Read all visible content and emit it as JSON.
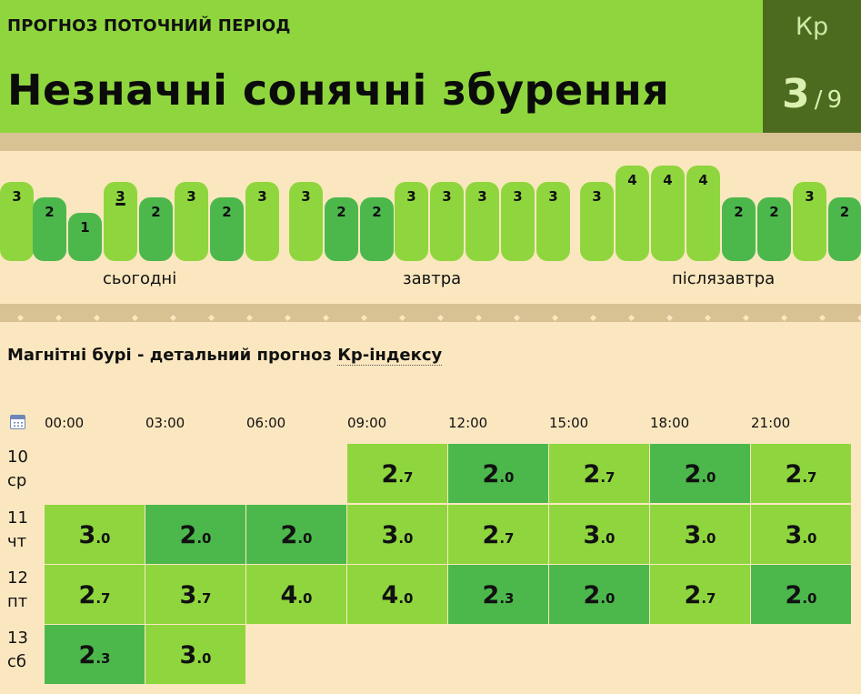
{
  "header": {
    "period_label": "ПРОГНОЗ ПОТОЧНИЙ ПЕРІОД",
    "headline": "Незначні сонячні збурення",
    "kp_label": "Кр",
    "kp_value": "3",
    "kp_separator": "/",
    "kp_max": "9"
  },
  "colors": {
    "light_green": "#8fd63e",
    "dark_green": "#4cb84c",
    "kp_box": "#4c6b1f",
    "background": "#fbe7bf",
    "band": "#d8c293"
  },
  "bars": {
    "values": [
      "3",
      "2",
      "1",
      "3",
      "2",
      "3",
      "2",
      "3",
      "3",
      "2",
      "2",
      "3",
      "3",
      "3",
      "3",
      "3",
      "3",
      "4",
      "4",
      "4",
      "2",
      "2",
      "3",
      "2"
    ],
    "current_index": 3,
    "day_labels": [
      "сьогодні",
      "завтра",
      "післязавтра"
    ]
  },
  "section": {
    "title_prefix": "Магнітні бурі - детальний прогноз ",
    "title_link": "Кр-індексу"
  },
  "table": {
    "calendar_icon": "calendar-icon",
    "hours": [
      "00:00",
      "03:00",
      "06:00",
      "09:00",
      "12:00",
      "15:00",
      "18:00",
      "21:00"
    ],
    "rows": [
      {
        "day": "10",
        "weekday": "ср",
        "cells": [
          null,
          null,
          null,
          "2.7",
          "2.0",
          "2.7",
          "2.0",
          "2.7"
        ]
      },
      {
        "day": "11",
        "weekday": "чт",
        "cells": [
          "3.0",
          "2.0",
          "2.0",
          "3.0",
          "2.7",
          "3.0",
          "3.0",
          "3.0"
        ]
      },
      {
        "day": "12",
        "weekday": "пт",
        "cells": [
          "2.7",
          "3.7",
          "4.0",
          "4.0",
          "2.3",
          "2.0",
          "2.7",
          "2.0"
        ]
      },
      {
        "day": "13",
        "weekday": "сб",
        "cells": [
          "2.3",
          "3.0",
          null,
          null,
          null,
          null,
          null,
          null
        ]
      }
    ]
  }
}
